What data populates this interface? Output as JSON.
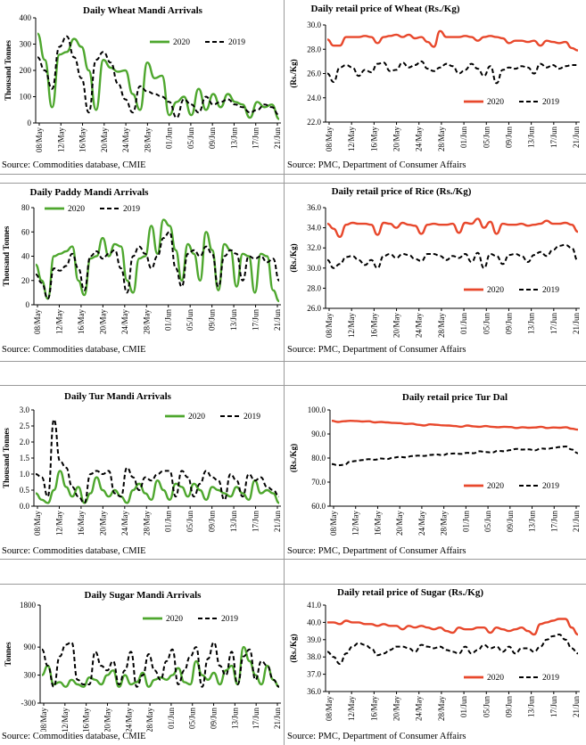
{
  "colors": {
    "green": "#4ea72e",
    "red": "#e8482c",
    "black": "#000000"
  },
  "sources": {
    "cmie": "Source: Commodities database, CMIE",
    "pmc": "Source: PMC, Department of Consumer Affairs"
  },
  "chart_data": [
    {
      "id": "wheat-arrivals",
      "type": "line",
      "position": "top-left",
      "title": "Daily Wheat Mandi Arrivals",
      "ylabel": "Thousand Tonnes",
      "xlabel": "",
      "ylim": [
        0,
        400
      ],
      "yticks": [
        "0",
        "100",
        "200",
        "300",
        "400"
      ],
      "xticks": [
        "08/May",
        "12/May",
        "16/May",
        "20/May",
        "24/May",
        "28/May",
        "01/Jun",
        "05/Jun",
        "09/Jun",
        "13/Jun",
        "17/Jun",
        "21/Jun"
      ],
      "legend_placement": "top-right",
      "series": [
        {
          "name": "2020",
          "color": "#4ea72e",
          "dash": false,
          "values": [
            340,
            240,
            60,
            260,
            270,
            320,
            290,
            200,
            50,
            240,
            210,
            195,
            200,
            110,
            50,
            230,
            170,
            180,
            30,
            80,
            100,
            30,
            130,
            50,
            110,
            60,
            110,
            80,
            70,
            20,
            80,
            60,
            70,
            15
          ]
        },
        {
          "name": "2019",
          "color": "#000000",
          "dash": true,
          "values": [
            250,
            200,
            130,
            290,
            330,
            250,
            170,
            40,
            240,
            270,
            230,
            150,
            90,
            40,
            140,
            120,
            110,
            100,
            80,
            20,
            90,
            70,
            40,
            100,
            70,
            80,
            90,
            70,
            60,
            40,
            50,
            70,
            60,
            30
          ]
        }
      ]
    },
    {
      "id": "wheat-price",
      "type": "line",
      "position": "top-right",
      "title": "Daily retail price of Wheat (Rs./Kg)",
      "ylabel": "(Rs./Kg)",
      "xlabel": "",
      "ylim": [
        22.0,
        30.0
      ],
      "yticks": [
        "22.0",
        "24.0",
        "26.0",
        "28.0",
        "30.0"
      ],
      "xticks": [
        "08/May",
        "12/May",
        "16/May",
        "20/May",
        "24/May",
        "28/May",
        "01/Jun",
        "05/Jun",
        "09/Jun",
        "13/Jun",
        "17/Jun",
        "21/Jun"
      ],
      "legend_placement": "bottom-center",
      "series": [
        {
          "name": "2020",
          "color": "#e8482c",
          "dash": false,
          "values": [
            28.8,
            28.3,
            28.3,
            29.0,
            29.0,
            29.0,
            29.1,
            29.0,
            28.5,
            29.0,
            29.1,
            29.2,
            29.0,
            29.2,
            28.9,
            29.0,
            28.6,
            28.2,
            29.5,
            29.0,
            29.0,
            29.0,
            29.1,
            29.0,
            28.7,
            29.0,
            29.1,
            29.0,
            28.9,
            28.5,
            28.7,
            28.7,
            28.6,
            28.7,
            28.3,
            28.7,
            28.6,
            28.5,
            28.6,
            28.1,
            27.9
          ]
        },
        {
          "name": "2019",
          "color": "#000000",
          "dash": true,
          "values": [
            26.0,
            25.3,
            26.5,
            26.7,
            26.5,
            25.8,
            26.3,
            26.1,
            26.8,
            26.9,
            26.2,
            26.3,
            26.9,
            26.5,
            26.7,
            27.0,
            26.4,
            26.2,
            26.5,
            26.8,
            26.6,
            26.0,
            26.3,
            26.8,
            26.4,
            25.8,
            26.6,
            25.2,
            26.3,
            26.5,
            26.4,
            26.6,
            26.5,
            26.0,
            26.8,
            26.5,
            26.7,
            26.4,
            26.6,
            26.7,
            26.7
          ]
        }
      ]
    },
    {
      "id": "paddy-arrivals",
      "type": "line",
      "position": "row2-left",
      "title": "Daily Paddy Mandi Arrivals",
      "ylabel": "Thousand Tonnes",
      "xlabel": "",
      "ylim": [
        0,
        80
      ],
      "yticks": [
        "0",
        "20",
        "40",
        "60",
        "80"
      ],
      "xticks": [
        "08/May",
        "12/May",
        "16/May",
        "20/May",
        "24/May",
        "28/May",
        "01/Jun",
        "05/Jun",
        "09/Jun",
        "13/Jun",
        "17/Jun",
        "21/Jun"
      ],
      "legend_placement": "top-left",
      "series": [
        {
          "name": "2020",
          "color": "#4ea72e",
          "dash": false,
          "values": [
            33,
            20,
            5,
            40,
            42,
            44,
            48,
            20,
            8,
            38,
            40,
            55,
            40,
            50,
            48,
            20,
            10,
            38,
            40,
            65,
            42,
            70,
            65,
            45,
            20,
            50,
            42,
            20,
            60,
            45,
            12,
            50,
            45,
            15,
            42,
            40,
            10,
            42,
            40,
            12,
            3
          ]
        },
        {
          "name": "2019",
          "color": "#000000",
          "dash": true,
          "values": [
            25,
            18,
            5,
            30,
            28,
            32,
            42,
            30,
            12,
            40,
            44,
            38,
            42,
            45,
            30,
            10,
            40,
            48,
            42,
            30,
            40,
            55,
            60,
            30,
            15,
            42,
            45,
            40,
            48,
            42,
            15,
            40,
            45,
            42,
            20,
            40,
            38,
            40,
            35,
            38,
            20
          ]
        }
      ]
    },
    {
      "id": "rice-price",
      "type": "line",
      "position": "row2-right",
      "title": "Daily retail price of Rice (Rs./Kg)",
      "ylabel": "(Rs./Kg)",
      "xlabel": "",
      "ylim": [
        26.0,
        36.0
      ],
      "yticks": [
        "26.0",
        "28.0",
        "30.0",
        "32.0",
        "34.0",
        "36.0"
      ],
      "xticks": [
        "08/May",
        "12/May",
        "16/May",
        "20/May",
        "24/May",
        "28/May",
        "01/Jun",
        "05/Jun",
        "09/Jun",
        "13/Jun",
        "17/Jun",
        "21/Jun"
      ],
      "legend_placement": "bottom-center",
      "series": [
        {
          "name": "2020",
          "color": "#e8482c",
          "dash": false,
          "values": [
            34.4,
            33.9,
            33.1,
            34.3,
            34.5,
            34.4,
            34.4,
            34.3,
            33.3,
            34.5,
            34.4,
            34.0,
            34.5,
            34.3,
            34.2,
            33.4,
            34.3,
            34.4,
            34.3,
            34.3,
            34.4,
            33.5,
            34.5,
            34.4,
            34.9,
            34.0,
            34.6,
            33.4,
            34.4,
            34.3,
            34.3,
            34.4,
            34.2,
            34.3,
            34.4,
            34.7,
            34.4,
            34.4,
            34.5,
            34.3,
            33.6
          ]
        },
        {
          "name": "2019",
          "color": "#000000",
          "dash": true,
          "values": [
            30.8,
            30.0,
            30.4,
            31.1,
            31.2,
            30.8,
            30.3,
            30.8,
            30.0,
            31.2,
            31.4,
            31.0,
            31.4,
            31.3,
            30.9,
            30.7,
            31.4,
            31.4,
            31.2,
            30.8,
            31.2,
            31.0,
            31.4,
            30.6,
            31.5,
            30.0,
            31.4,
            31.2,
            30.4,
            31.3,
            31.4,
            31.2,
            30.6,
            31.3,
            31.6,
            31.2,
            31.8,
            32.2,
            32.3,
            32.0,
            30.7
          ]
        }
      ]
    },
    {
      "id": "tur-arrivals",
      "type": "line",
      "position": "row3-left",
      "title": "Daily Tur Mandi Arrivals",
      "ylabel": "Thousand Tonnes",
      "xlabel": "",
      "ylim": [
        0.0,
        3.0
      ],
      "yticks": [
        "0.0",
        "0.5",
        "1.0",
        "1.5",
        "2.0",
        "2.5",
        "3.0"
      ],
      "xticks": [
        "08/May",
        "12/May",
        "16/May",
        "20/May",
        "24/May",
        "28/May",
        "01/Jun",
        "05/Jun",
        "09/Jun",
        "13/Jun",
        "17/Jun",
        "21/Jun"
      ],
      "legend_placement": "top-right",
      "series": [
        {
          "name": "2020",
          "color": "#4ea72e",
          "dash": false,
          "values": [
            0.4,
            0.2,
            0.1,
            0.5,
            1.1,
            0.6,
            0.3,
            0.6,
            0.1,
            0.4,
            0.9,
            0.5,
            0.3,
            0.5,
            0.3,
            0.1,
            0.5,
            0.7,
            0.4,
            0.2,
            0.8,
            0.5,
            0.2,
            0.7,
            0.6,
            0.3,
            0.7,
            0.5,
            0.2,
            0.6,
            0.5,
            0.4,
            0.3,
            0.6,
            0.4,
            0.2,
            0.8,
            0.4,
            0.5,
            0.4,
            0.1
          ]
        },
        {
          "name": "2019",
          "color": "#000000",
          "dash": true,
          "values": [
            1.0,
            0.9,
            0.3,
            2.7,
            1.4,
            1.2,
            0.6,
            0.3,
            0.1,
            1.0,
            1.1,
            1.0,
            1.1,
            0.4,
            0.3,
            1.2,
            0.9,
            0.5,
            0.9,
            0.8,
            1.0,
            1.1,
            1.1,
            0.3,
            1.1,
            0.9,
            0.3,
            0.7,
            1.1,
            0.9,
            0.8,
            0.2,
            1.0,
            0.8,
            0.3,
            1.0,
            0.8,
            0.9,
            0.6,
            0.5,
            0.3
          ]
        }
      ]
    },
    {
      "id": "tur-price",
      "type": "line",
      "position": "row3-right",
      "title": "Daily retail price Tur Dal",
      "ylabel": "(Rs./Kg)",
      "xlabel": "",
      "ylim": [
        60.0,
        100.0
      ],
      "yticks": [
        "60.0",
        "70.0",
        "80.0",
        "90.0",
        "100.0"
      ],
      "xticks": [
        "08/May",
        "12/May",
        "16/May",
        "20/May",
        "24/May",
        "28/May",
        "01/Jun",
        "05/Jun",
        "09/Jun",
        "13/Jun",
        "17/Jun",
        "21/Jun"
      ],
      "legend_placement": "bottom-center",
      "series": [
        {
          "name": "2020",
          "color": "#e8482c",
          "dash": false,
          "values": [
            95.5,
            95.0,
            95.3,
            95.5,
            95.4,
            95.2,
            95.3,
            94.8,
            95.0,
            94.8,
            94.6,
            94.5,
            94.2,
            94.3,
            93.8,
            93.5,
            94.0,
            93.8,
            93.6,
            93.5,
            93.3,
            93.0,
            93.5,
            93.2,
            93.0,
            93.3,
            93.0,
            92.8,
            93.0,
            92.9,
            92.5,
            92.8,
            92.6,
            92.7,
            93.0,
            92.5,
            92.7,
            92.6,
            92.8,
            92.2,
            91.8
          ]
        },
        {
          "name": "2019",
          "color": "#000000",
          "dash": true,
          "values": [
            77.5,
            77.0,
            77.2,
            78.5,
            78.8,
            79.2,
            79.5,
            79.3,
            79.8,
            79.6,
            80.2,
            80.5,
            80.3,
            80.8,
            81.0,
            80.9,
            81.3,
            81.5,
            81.2,
            81.8,
            81.9,
            81.7,
            82.2,
            82.0,
            82.8,
            82.5,
            82.3,
            83.0,
            82.8,
            83.3,
            83.8,
            83.5,
            83.6,
            83.2,
            84.0,
            83.8,
            84.2,
            84.6,
            84.8,
            83.5,
            82.0
          ]
        }
      ]
    },
    {
      "id": "sugar-arrivals",
      "type": "line",
      "position": "bottom-left",
      "title": "Daily Sugar Mandi Arrivals",
      "ylabel": "Tonnes",
      "xlabel": "",
      "ylim": [
        -300,
        1800
      ],
      "yticks": [
        "-300",
        "300",
        "900",
        "1800"
      ],
      "xticks": [
        "08/May",
        "12/May",
        "16/May",
        "20/May",
        "24/May",
        "28/May",
        "01/Jun",
        "05/Jun",
        "09/Jun",
        "13/Jun",
        "17/Jun",
        "21/Jun"
      ],
      "legend_placement": "top-right",
      "series": [
        {
          "name": "2020",
          "color": "#4ea72e",
          "dash": false,
          "values": [
            300,
            500,
            100,
            150,
            50,
            200,
            100,
            50,
            250,
            200,
            100,
            300,
            400,
            50,
            300,
            100,
            150,
            350,
            50,
            200,
            250,
            200,
            300,
            450,
            150,
            100,
            600,
            300,
            200,
            350,
            100,
            400,
            500,
            100,
            900,
            600,
            300,
            100,
            500,
            200,
            50
          ]
        },
        {
          "name": "2019",
          "color": "#000000",
          "dash": true,
          "values": [
            850,
            500,
            50,
            700,
            950,
            1000,
            200,
            100,
            100,
            800,
            500,
            400,
            600,
            100,
            400,
            800,
            50,
            300,
            750,
            400,
            200,
            600,
            850,
            100,
            400,
            700,
            900,
            50,
            650,
            1000,
            500,
            300,
            800,
            100,
            700,
            850,
            200,
            600,
            500,
            200,
            50
          ]
        }
      ]
    },
    {
      "id": "sugar-price",
      "type": "line",
      "position": "bottom-right",
      "title": "Daily retail price of Sugar (Rs./Kg)",
      "ylabel": "(Rs./Kg)",
      "xlabel": "",
      "ylim": [
        36.0,
        41.0
      ],
      "yticks": [
        "36.0",
        "37.0",
        "38.0",
        "39.0",
        "40.0",
        "41.0"
      ],
      "xticks": [
        "08/May",
        "12/May",
        "16/May",
        "20/May",
        "24/May",
        "28/May",
        "01/Jun",
        "05/Jun",
        "09/Jun",
        "13/Jun",
        "17/Jun",
        "21/Jun"
      ],
      "legend_placement": "bottom-center",
      "series": [
        {
          "name": "2020",
          "color": "#e8482c",
          "dash": false,
          "values": [
            40.0,
            40.0,
            39.9,
            40.1,
            40.0,
            40.0,
            39.9,
            39.9,
            39.8,
            39.9,
            39.8,
            39.8,
            39.6,
            39.8,
            39.7,
            39.8,
            39.7,
            39.6,
            39.7,
            39.5,
            39.4,
            39.7,
            39.6,
            39.6,
            39.7,
            39.7,
            39.4,
            39.7,
            39.6,
            39.5,
            39.6,
            39.7,
            39.5,
            39.3,
            39.9,
            40.0,
            40.1,
            40.2,
            40.2,
            39.7,
            39.3
          ]
        },
        {
          "name": "2019",
          "color": "#000000",
          "dash": true,
          "values": [
            38.3,
            38.0,
            37.6,
            38.2,
            38.6,
            38.8,
            38.7,
            38.5,
            38.1,
            38.2,
            38.4,
            38.6,
            38.6,
            38.5,
            38.3,
            38.7,
            38.6,
            38.5,
            38.6,
            38.4,
            38.3,
            38.2,
            38.6,
            38.2,
            38.4,
            38.7,
            38.5,
            38.6,
            38.3,
            38.6,
            38.2,
            38.5,
            38.5,
            38.3,
            38.6,
            39.0,
            39.2,
            39.3,
            39.0,
            38.5,
            38.2
          ]
        }
      ]
    }
  ]
}
